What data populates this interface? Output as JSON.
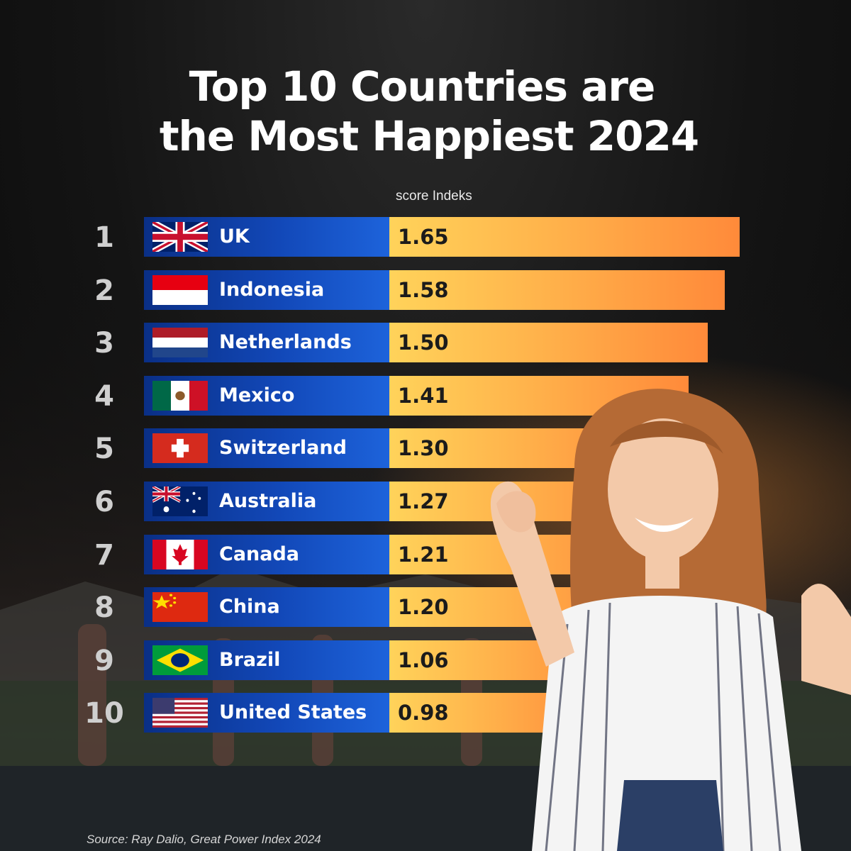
{
  "title": {
    "line1": "Top 10 Countries are",
    "line2": "the Most Happiest 2024"
  },
  "axis_label": "score Indeks",
  "source": "Source: Ray Dalio, Great Power Index 2024",
  "colors": {
    "background": "#111111",
    "name_bar": "#1248b8",
    "value_bar_start": "#ffd35a",
    "value_bar_end": "#ff8a3a",
    "title_text": "#ffffff"
  },
  "chart_data": {
    "type": "bar",
    "orientation": "horizontal",
    "title": "Top 10 Countries are the Most Happiest 2024",
    "xlabel": "score Indeks",
    "ylabel": "",
    "xlim": [
      0,
      1.65
    ],
    "grid": false,
    "categories": [
      "UK",
      "Indonesia",
      "Netherlands",
      "Mexico",
      "Switzerland",
      "Australia",
      "Canada",
      "China",
      "Brazil",
      "United States"
    ],
    "ranks": [
      "1",
      "2",
      "3",
      "4",
      "5",
      "6",
      "7",
      "8",
      "9",
      "10"
    ],
    "values": [
      1.65,
      1.58,
      1.5,
      1.41,
      1.3,
      1.27,
      1.21,
      1.2,
      1.06,
      0.98
    ],
    "value_labels": [
      "1.65",
      "1.58",
      "1.50",
      "1.41",
      "1.30",
      "1.27",
      "1.21",
      "1.20",
      "1.06",
      "0.98"
    ],
    "flags": [
      "uk-flag-icon",
      "indonesia-flag-icon",
      "netherlands-flag-icon",
      "mexico-flag-icon",
      "switzerland-flag-icon",
      "australia-flag-icon",
      "canada-flag-icon",
      "china-flag-icon",
      "brazil-flag-icon",
      "usa-flag-icon"
    ]
  }
}
